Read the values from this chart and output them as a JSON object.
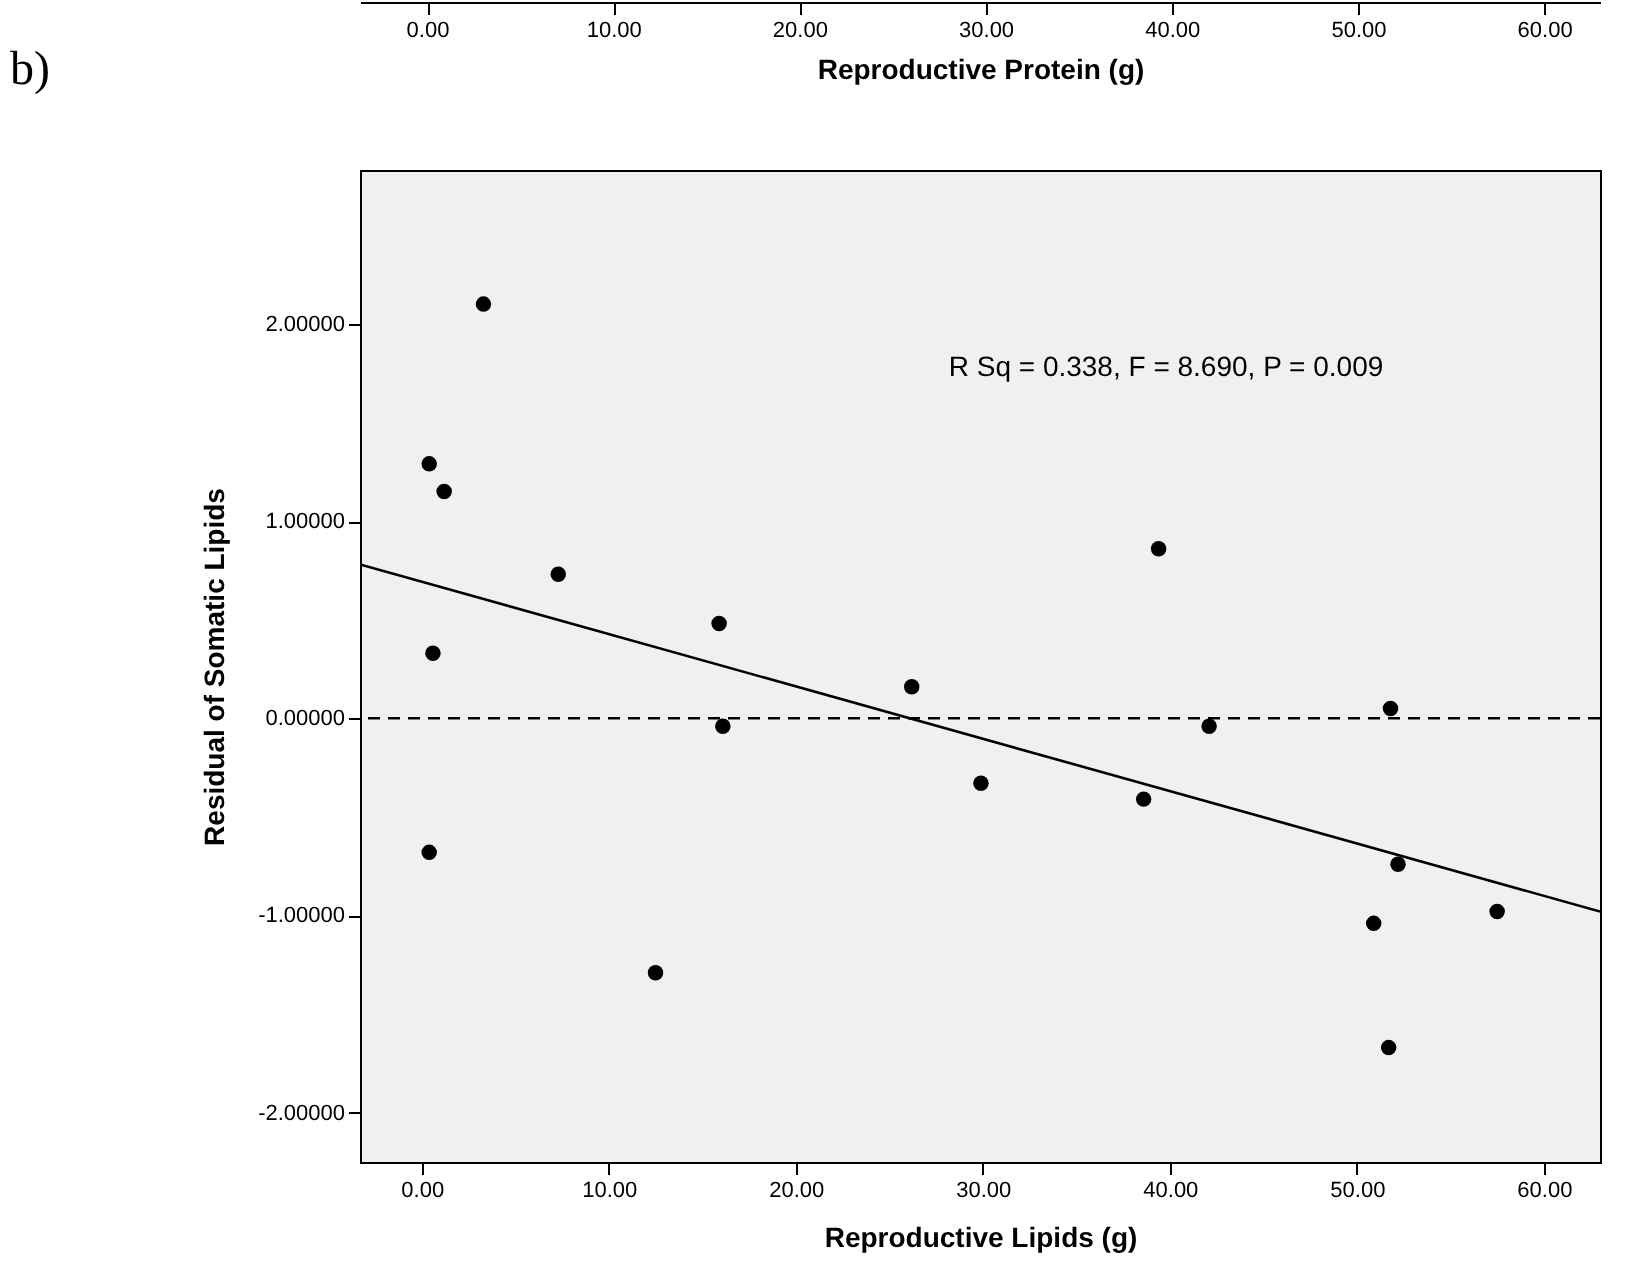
{
  "chart_data": {
    "type": "scatter",
    "xlabel": "Reproductive Lipids (g)",
    "ylabel": "Residual of Somatic Lipids",
    "x2label": "Reproductive Protein (g)",
    "xlim": [
      -3.3,
      63
    ],
    "ylim": [
      -2.25,
      2.78
    ],
    "x2lim": [
      -3.6,
      63
    ],
    "xticks": [
      {
        "value": 0,
        "label": "0.00"
      },
      {
        "value": 10,
        "label": "10.00"
      },
      {
        "value": 20,
        "label": "20.00"
      },
      {
        "value": 30,
        "label": "30.00"
      },
      {
        "value": 40,
        "label": "40.00"
      },
      {
        "value": 50,
        "label": "50.00"
      },
      {
        "value": 60,
        "label": "60.00"
      }
    ],
    "x2ticks": [
      {
        "value": 0,
        "label": "0.00"
      },
      {
        "value": 10,
        "label": "10.00"
      },
      {
        "value": 20,
        "label": "20.00"
      },
      {
        "value": 30,
        "label": "30.00"
      },
      {
        "value": 40,
        "label": "40.00"
      },
      {
        "value": 50,
        "label": "50.00"
      },
      {
        "value": 60,
        "label": "60.00"
      }
    ],
    "yticks": [
      {
        "value": -2,
        "label": "-2.00000"
      },
      {
        "value": -1,
        "label": "-1.00000"
      },
      {
        "value": 0,
        "label": "0.00000"
      },
      {
        "value": 1,
        "label": "1.00000"
      },
      {
        "value": 2,
        "label": "2.00000"
      }
    ],
    "grid": false,
    "series": [
      {
        "marker": "circle",
        "color": "#000000",
        "x": [
          3.3,
          0.4,
          1.2,
          7.3,
          0.6,
          15.9,
          16.1,
          26.2,
          0.4,
          12.5,
          29.9,
          38.6,
          39.4,
          42.1,
          51.8,
          52.2,
          50.9,
          57.5,
          51.7
        ],
        "values": [
          2.1,
          1.29,
          1.15,
          0.73,
          0.33,
          0.48,
          -0.04,
          0.16,
          -0.68,
          -1.29,
          -0.33,
          -0.41,
          0.86,
          -0.04,
          0.05,
          -0.74,
          -1.04,
          -0.98,
          -1.67
        ]
      },
      {
        "type": "line",
        "color": "#000000",
        "line_style": "solid",
        "x": [
          -3.3,
          63
        ],
        "values": [
          0.78,
          -0.98
        ]
      }
    ],
    "ref_lines": [
      {
        "axis": "y",
        "value": 0,
        "color": "#000000",
        "line_style": "dashed"
      }
    ],
    "annotations": [
      "b)",
      "R Sq = 0.338, F = 8.690, P = 0.009"
    ]
  }
}
